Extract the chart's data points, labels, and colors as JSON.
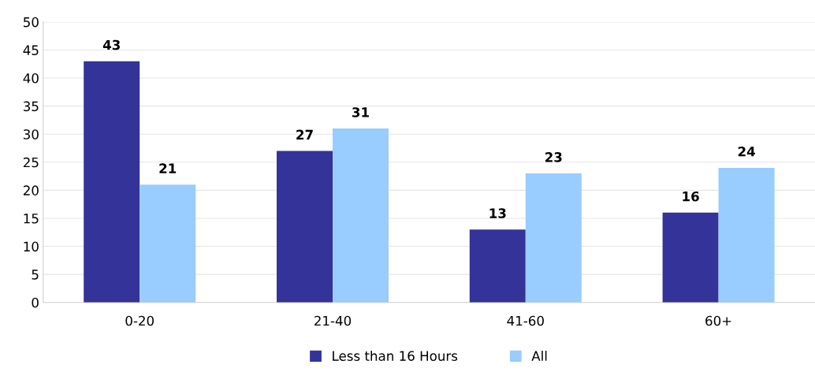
{
  "chart_data": {
    "type": "bar",
    "categories": [
      "0-20",
      "21-40",
      "41-60",
      "60+"
    ],
    "series": [
      {
        "name": "Less than 16 Hours",
        "color": "#333399",
        "values": [
          43,
          27,
          13,
          16
        ]
      },
      {
        "name": "All",
        "color": "#99ccff",
        "values": [
          21,
          31,
          23,
          24
        ]
      }
    ],
    "ylim": [
      0,
      50
    ],
    "yticks": [
      0,
      5,
      10,
      15,
      20,
      25,
      30,
      35,
      40,
      45,
      50
    ],
    "grid": "y",
    "legend": "bottom",
    "data_labels": true
  }
}
